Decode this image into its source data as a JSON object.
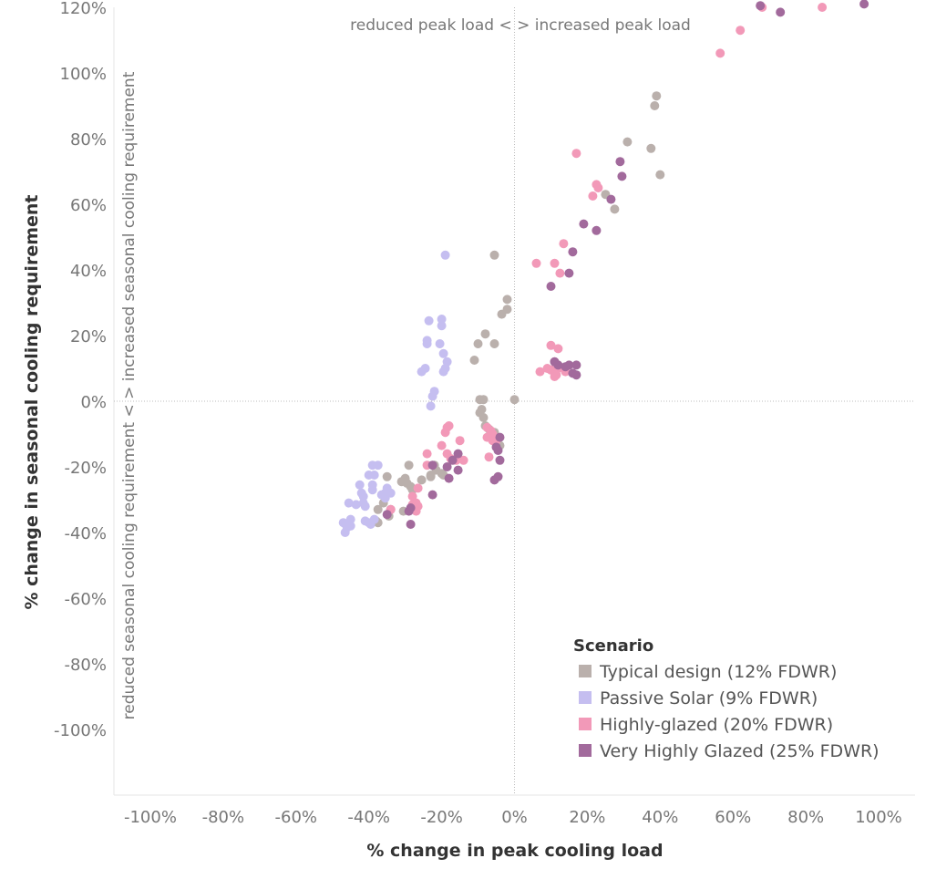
{
  "chart_data": {
    "type": "scatter",
    "title": "",
    "xlabel": "% change in peak cooling load",
    "ylabel": "% change in seasonal cooling requirement",
    "xlim": [
      -110,
      110
    ],
    "ylim": [
      -120,
      120
    ],
    "x_ticks": [
      {
        "value": -100,
        "label": "-100%"
      },
      {
        "value": -80,
        "label": "-80%"
      },
      {
        "value": -60,
        "label": "-60%"
      },
      {
        "value": -40,
        "label": "-40%"
      },
      {
        "value": -20,
        "label": "-20%"
      },
      {
        "value": 0,
        "label": "0%"
      },
      {
        "value": 20,
        "label": "20%"
      },
      {
        "value": 40,
        "label": "40%"
      },
      {
        "value": 60,
        "label": "60%"
      },
      {
        "value": 80,
        "label": "80%"
      },
      {
        "value": 100,
        "label": "100%"
      }
    ],
    "y_ticks": [
      {
        "value": 120,
        "label": "120%"
      },
      {
        "value": 100,
        "label": "100%"
      },
      {
        "value": 80,
        "label": "80%"
      },
      {
        "value": 60,
        "label": "60%"
      },
      {
        "value": 40,
        "label": "40%"
      },
      {
        "value": 20,
        "label": "20%"
      },
      {
        "value": 0,
        "label": "0%"
      },
      {
        "value": -20,
        "label": "-20%"
      },
      {
        "value": -40,
        "label": "-40%"
      },
      {
        "value": -60,
        "label": "-60%"
      },
      {
        "value": -80,
        "label": "-80%"
      },
      {
        "value": -100,
        "label": "-100%"
      }
    ],
    "annotations": {
      "top": "reduced peak load < > increased peak load",
      "left": "reduced seasonal cooling requirement < > increased seasonal cooling requirement"
    },
    "legend_title": "Scenario",
    "legend_position": "bottom-right",
    "series": [
      {
        "name": "Typical design (12% FDWR)",
        "color": "#bab0ac",
        "points": [
          [
            39,
            93
          ],
          [
            38.5,
            90
          ],
          [
            31,
            79
          ],
          [
            37.5,
            77
          ],
          [
            40,
            69
          ],
          [
            25,
            63
          ],
          [
            27.5,
            58.5
          ],
          [
            -5.5,
            44.5
          ],
          [
            -2,
            31
          ],
          [
            -2,
            28
          ],
          [
            -3.5,
            26.5
          ],
          [
            -8,
            20.5
          ],
          [
            -10,
            17.5
          ],
          [
            -5.5,
            17.5
          ],
          [
            -11,
            12.5
          ],
          [
            0,
            0.5
          ],
          [
            -9.5,
            0.5
          ],
          [
            -8.5,
            0.5
          ],
          [
            -9,
            -2.5
          ],
          [
            -9.5,
            -3.5
          ],
          [
            -8.5,
            -5
          ],
          [
            -8,
            -7.5
          ],
          [
            -7,
            -8.5
          ],
          [
            -5.5,
            -9.5
          ],
          [
            -5,
            -11.5
          ],
          [
            -4,
            -13.5
          ],
          [
            -29,
            -19.5
          ],
          [
            -22,
            -19.5
          ],
          [
            -21.5,
            -21
          ],
          [
            -20,
            -22
          ],
          [
            -19.5,
            -22.5
          ],
          [
            -23,
            -23
          ],
          [
            -30,
            -23.5
          ],
          [
            -35,
            -23
          ],
          [
            -25.5,
            -24
          ],
          [
            -29.5,
            -25
          ],
          [
            -28.5,
            -26
          ],
          [
            -28,
            -27
          ],
          [
            -31,
            -24.5
          ],
          [
            -36,
            -31
          ],
          [
            -37.5,
            -33
          ],
          [
            -30.5,
            -33.5
          ],
          [
            -34,
            -33
          ],
          [
            -34.5,
            -35
          ],
          [
            -38,
            -36.5
          ],
          [
            -37.5,
            -37
          ],
          [
            -23,
            -22.5
          ]
        ]
      },
      {
        "name": "Passive Solar (9% FDWR)",
        "color": "#c5bef0",
        "points": [
          [
            -19,
            44.5
          ],
          [
            -23.5,
            24.5
          ],
          [
            -20,
            25
          ],
          [
            -20,
            23
          ],
          [
            -24,
            18.5
          ],
          [
            -24,
            17.5
          ],
          [
            -20.5,
            17.5
          ],
          [
            -19.5,
            14.5
          ],
          [
            -18.5,
            12
          ],
          [
            -19,
            10
          ],
          [
            -19.5,
            9
          ],
          [
            -24.5,
            10
          ],
          [
            -25.5,
            9
          ],
          [
            -22,
            3
          ],
          [
            -22.5,
            1.5
          ],
          [
            -23,
            -1.5
          ],
          [
            -39,
            -19.5
          ],
          [
            -37.5,
            -19.5
          ],
          [
            -40,
            -22.5
          ],
          [
            -38.5,
            -22.5
          ],
          [
            -39,
            -25.5
          ],
          [
            -39,
            -27
          ],
          [
            -42.5,
            -25.5
          ],
          [
            -42,
            -28
          ],
          [
            -41.5,
            -29
          ],
          [
            -35,
            -26.5
          ],
          [
            -35.5,
            -28
          ],
          [
            -34,
            -28
          ],
          [
            -36.5,
            -28.5
          ],
          [
            -35.5,
            -29.5
          ],
          [
            -41.5,
            -31
          ],
          [
            -43.5,
            -31.5
          ],
          [
            -45.5,
            -31
          ],
          [
            -41,
            -32
          ],
          [
            -47,
            -37
          ],
          [
            -45,
            -36
          ],
          [
            -45,
            -38
          ],
          [
            -46,
            -38.5
          ],
          [
            -46.5,
            -40
          ],
          [
            -40,
            -37
          ],
          [
            -39.5,
            -37.5
          ],
          [
            -41,
            -36.5
          ],
          [
            -38.5,
            -36
          ],
          [
            -45.5,
            -37.5
          ]
        ]
      },
      {
        "name": "Highly-glazed (20% FDWR)",
        "color": "#f299b8",
        "points": [
          [
            68,
            120
          ],
          [
            62,
            113
          ],
          [
            56.5,
            106
          ],
          [
            84.5,
            120
          ],
          [
            17,
            75.5
          ],
          [
            22.5,
            66
          ],
          [
            23,
            65
          ],
          [
            21.5,
            62.5
          ],
          [
            13.5,
            48
          ],
          [
            6,
            42
          ],
          [
            11,
            42
          ],
          [
            12.5,
            39
          ],
          [
            10,
            17
          ],
          [
            12,
            16
          ],
          [
            10,
            9.5
          ],
          [
            11,
            12
          ],
          [
            12,
            10
          ],
          [
            14,
            9
          ],
          [
            11.5,
            8
          ],
          [
            9,
            10
          ],
          [
            7,
            9
          ],
          [
            11,
            7.5
          ],
          [
            -18,
            -7.5
          ],
          [
            -18.5,
            -8
          ],
          [
            -19,
            -9.5
          ],
          [
            -15,
            -12
          ],
          [
            -20,
            -13.5
          ],
          [
            -24,
            -16
          ],
          [
            -18.5,
            -16
          ],
          [
            -17.5,
            -17.5
          ],
          [
            -16,
            -18
          ],
          [
            -14,
            -18
          ],
          [
            -24,
            -19.5
          ],
          [
            -7.5,
            -8
          ],
          [
            -6.5,
            -9
          ],
          [
            -6,
            -10
          ],
          [
            -7.5,
            -11
          ],
          [
            -6,
            -12
          ],
          [
            -5,
            -12
          ],
          [
            -7,
            -17
          ],
          [
            -26.5,
            -26.5
          ],
          [
            -28,
            -29
          ],
          [
            -27,
            -31
          ],
          [
            -28,
            -31.5
          ],
          [
            -26.5,
            -32
          ],
          [
            -34,
            -33
          ],
          [
            -27,
            -33.5
          ]
        ]
      },
      {
        "name": "Very Highly Glazed (25% FDWR)",
        "color": "#a26a9c",
        "points": [
          [
            96,
            121
          ],
          [
            73,
            118.5
          ],
          [
            67.5,
            120.5
          ],
          [
            29,
            73
          ],
          [
            29.5,
            68.5
          ],
          [
            26.5,
            61.5
          ],
          [
            22.5,
            52
          ],
          [
            19,
            54
          ],
          [
            16,
            45.5
          ],
          [
            15,
            39
          ],
          [
            10,
            35
          ],
          [
            17,
            11
          ],
          [
            16,
            8.5
          ],
          [
            17,
            8
          ],
          [
            15,
            11
          ],
          [
            14,
            10.5
          ],
          [
            12,
            11
          ],
          [
            11,
            12
          ],
          [
            -15.5,
            -16
          ],
          [
            -17,
            -18
          ],
          [
            -18.5,
            -20
          ],
          [
            -15.5,
            -21
          ],
          [
            -18,
            -23.5
          ],
          [
            -22.5,
            -19.5
          ],
          [
            -22.5,
            -28.5
          ],
          [
            -4,
            -11
          ],
          [
            -5,
            -14
          ],
          [
            -4.5,
            -15
          ],
          [
            -4,
            -18
          ],
          [
            -5.5,
            -24
          ],
          [
            -4.5,
            -23
          ],
          [
            -28.5,
            -32.5
          ],
          [
            -29,
            -33.5
          ],
          [
            -28.5,
            -37.5
          ],
          [
            -35,
            -34.5
          ]
        ]
      }
    ]
  }
}
